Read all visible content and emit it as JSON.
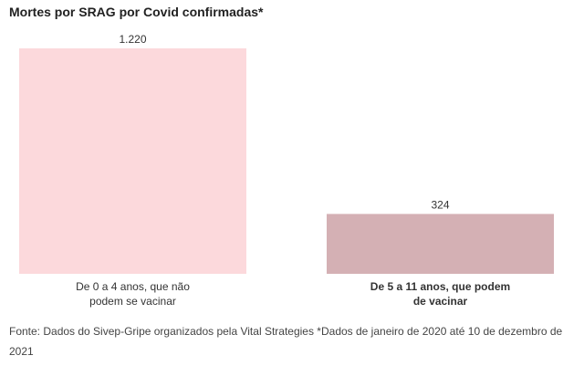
{
  "chart_data": {
    "type": "bar",
    "title": "Mortes por SRAG por Covid confirmadas*",
    "categories": [
      [
        "De 0 a 4 anos, que não",
        "podem se vacinar"
      ],
      [
        "De 5 a 11 anos, que podem",
        "de vacinar"
      ]
    ],
    "values": [
      1220,
      324
    ],
    "value_labels": [
      "1.220",
      "324"
    ],
    "colors": [
      "#fcd9dc",
      "#d4b0b4"
    ],
    "highlighted_category": 1,
    "ylim": [
      0,
      1220
    ],
    "xlabel": "",
    "ylabel": ""
  },
  "source": "Fonte: Dados do Sivep-Gripe organizados pela Vital Strategies *Dados de janeiro de 2020 até 10 de dezembro de 2021"
}
